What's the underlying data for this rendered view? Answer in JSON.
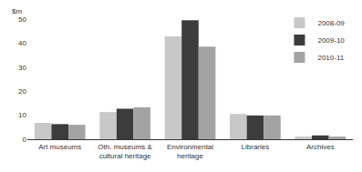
{
  "chart_data": {
    "type": "bar",
    "ylabel": "$m",
    "categories": [
      "Art museums",
      "Oth. museums & cultural heritage",
      "Environmental heritage",
      "Libraries",
      "Archives"
    ],
    "series": [
      {
        "name": "2008-09",
        "color": "#c8c8c8",
        "values": [
          6.8,
          11.3,
          42.8,
          10.5,
          1.1
        ]
      },
      {
        "name": "2009-10",
        "color": "#3c3c3c",
        "values": [
          6.3,
          12.7,
          49.5,
          9.9,
          1.6
        ]
      },
      {
        "name": "2010-11",
        "color": "#a3a3a3",
        "values": [
          6.0,
          13.3,
          38.5,
          9.9,
          1.1
        ]
      }
    ],
    "ylim": [
      0,
      50
    ],
    "yticks": [
      0,
      10,
      20,
      30,
      40,
      50
    ],
    "grid": true,
    "legend": "upper right"
  }
}
